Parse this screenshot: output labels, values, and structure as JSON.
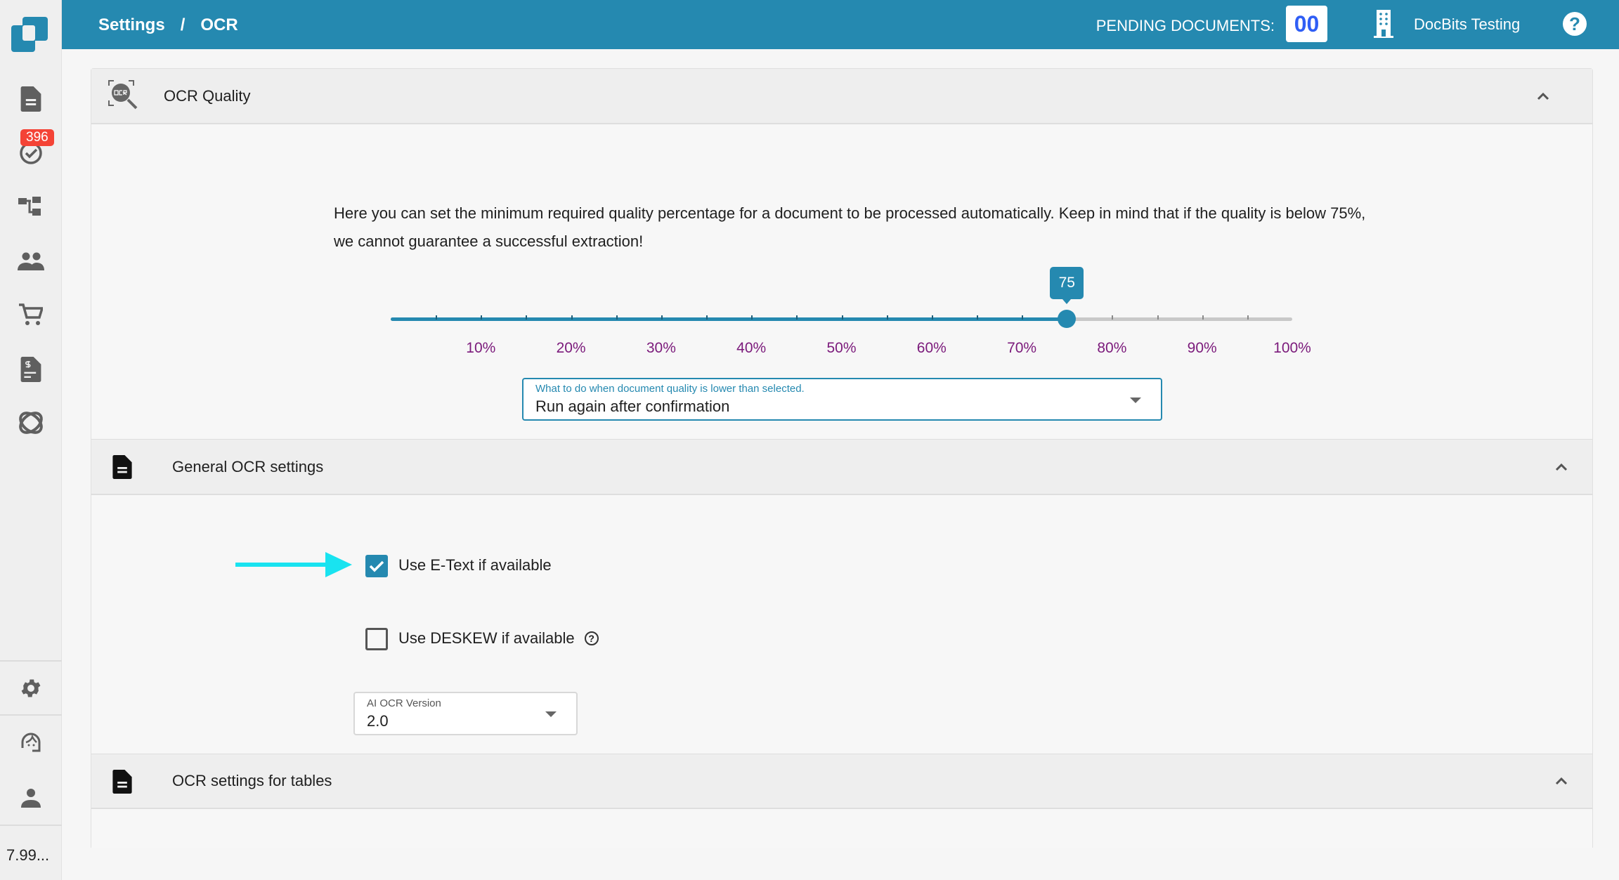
{
  "header": {
    "breadcrumb": [
      "Settings",
      "OCR"
    ],
    "separator": "/",
    "pending_label": "PENDING DOCUMENTS:",
    "pending_count": "00",
    "company": "DocBits Testing",
    "accent": "#2589b0"
  },
  "sidebar": {
    "badge": "396",
    "version": "7.99...",
    "items": [
      "documents-icon",
      "tasks-icon",
      "workflow-icon",
      "users-icon",
      "cart-icon",
      "invoice-icon",
      "integration-icon"
    ],
    "bottom_items": [
      "settings-icon",
      "support-icon",
      "profile-icon"
    ]
  },
  "sections": {
    "ocr_quality": {
      "title": "OCR Quality",
      "description_line1": "Here you can set the minimum required quality percentage for a document to be processed automatically. Keep in mind that if the quality is below 75%,",
      "description_line2": "we cannot guarantee a successful extraction!",
      "slider_value": 75,
      "slider_value_label": "75",
      "slider_min": 0,
      "slider_max": 100,
      "slider_step": 5,
      "tick_labels": [
        "10%",
        "20%",
        "30%",
        "40%",
        "50%",
        "60%",
        "70%",
        "80%",
        "90%",
        "100%"
      ],
      "select_label": "What to do when document quality is lower than selected.",
      "select_value": "Run again after confirmation"
    },
    "general": {
      "title": "General OCR settings",
      "etext_label": "Use E-Text if available",
      "etext_checked": true,
      "deskew_label": "Use DESKEW if available",
      "deskew_checked": false,
      "version_label": "AI OCR Version",
      "version_value": "2.0"
    },
    "tables": {
      "title": "OCR settings for tables"
    }
  }
}
